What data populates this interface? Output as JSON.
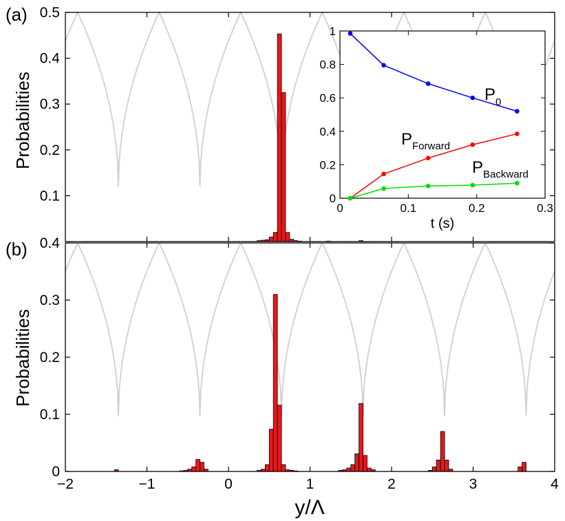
{
  "chart_data": [
    {
      "type": "bar",
      "panel_label": "(a)",
      "title": "",
      "xlabel": "",
      "ylabel": "Probabilities",
      "xlim": [
        -2,
        4
      ],
      "ylim": [
        0,
        0.5
      ],
      "yticks": [
        0.1,
        0.2,
        0.3,
        0.4,
        0.5
      ],
      "ytick_labels": [
        "0.1",
        "0.2",
        "0.3",
        "0.4",
        "0.5"
      ],
      "bar_color": "#e41a1c",
      "bar_edge_color": "#000000",
      "bar_width": 0.05,
      "background_curve_color": "#d3d3d3",
      "background_potential": {
        "minima": [
          -1.35,
          -0.35,
          0.65,
          1.65,
          2.65,
          3.65
        ],
        "max": 0.5,
        "min": 0.12
      },
      "bars": {
        "x": [
          0.375,
          0.425,
          0.475,
          0.525,
          0.575,
          0.625,
          0.675,
          0.725,
          0.775,
          0.825,
          0.875,
          1.225,
          1.625
        ],
        "y": [
          0.002,
          0.003,
          0.004,
          0.01,
          0.02,
          0.453,
          0.325,
          0.02,
          0.005,
          0.002,
          0.001,
          0.001,
          0.002
        ]
      }
    },
    {
      "type": "line",
      "role": "inset",
      "xlabel": "t (s)",
      "ylabel": "",
      "xlim": [
        0,
        0.3
      ],
      "ylim": [
        0,
        1
      ],
      "xticks": [
        0,
        0.1,
        0.2,
        0.3
      ],
      "xtick_labels": [
        "0",
        "0.1",
        "0.2",
        "0.3"
      ],
      "yticks": [
        0,
        0.2,
        0.4,
        0.6,
        0.8,
        1
      ],
      "ytick_labels": [
        "0",
        "0.2",
        "0.4",
        "0.6",
        "0.8",
        "1"
      ],
      "series": [
        {
          "name": "P",
          "subscript": "0",
          "color": "#0000ff",
          "x": [
            0.015,
            0.064,
            0.129,
            0.194,
            0.259
          ],
          "y": [
            0.985,
            0.795,
            0.685,
            0.6,
            0.52
          ]
        },
        {
          "name": "P",
          "subscript": "Forward",
          "color": "#ff0000",
          "x": [
            0.015,
            0.064,
            0.129,
            0.194,
            0.259
          ],
          "y": [
            0.0,
            0.145,
            0.24,
            0.32,
            0.385
          ]
        },
        {
          "name": "P",
          "subscript": "Backward",
          "color": "#00dd00",
          "x": [
            0.015,
            0.064,
            0.129,
            0.194,
            0.259
          ],
          "y": [
            0.0,
            0.058,
            0.073,
            0.078,
            0.09
          ]
        }
      ]
    },
    {
      "type": "bar",
      "panel_label": "(b)",
      "title": "",
      "xlabel": "y/Λ",
      "ylabel": "Probabilities",
      "xlim": [
        -2,
        4
      ],
      "ylim": [
        0,
        0.4
      ],
      "xticks": [
        -2,
        -1,
        0,
        1,
        2,
        3,
        4
      ],
      "xtick_labels": [
        "−2",
        "−1",
        "0",
        "1",
        "2",
        "3",
        "4"
      ],
      "yticks": [
        0,
        0.1,
        0.2,
        0.3,
        0.4
      ],
      "ytick_labels": [
        "0",
        "0.1",
        "0.2",
        "0.3",
        "0.4"
      ],
      "bar_color": "#e41a1c",
      "bar_edge_color": "#000000",
      "bar_width": 0.05,
      "background_curve_color": "#d3d3d3",
      "background_potential": {
        "minima": [
          -1.35,
          -0.35,
          0.65,
          1.65,
          2.65,
          3.65
        ],
        "max": 0.4,
        "min": 0.097
      },
      "bars": {
        "x": [
          -1.375,
          -0.575,
          -0.525,
          -0.475,
          -0.425,
          -0.375,
          -0.325,
          -0.275,
          0.375,
          0.425,
          0.475,
          0.525,
          0.575,
          0.625,
          0.675,
          0.725,
          0.775,
          0.825,
          1.375,
          1.425,
          1.475,
          1.525,
          1.575,
          1.625,
          1.675,
          1.725,
          1.775,
          2.475,
          2.525,
          2.575,
          2.625,
          2.675,
          2.725,
          3.575,
          3.625
        ],
        "y": [
          0.003,
          0.001,
          0.002,
          0.004,
          0.008,
          0.021,
          0.016,
          0.004,
          0.002,
          0.004,
          0.012,
          0.074,
          0.31,
          0.116,
          0.012,
          0.003,
          0.002,
          0.001,
          0.002,
          0.003,
          0.006,
          0.012,
          0.031,
          0.119,
          0.028,
          0.006,
          0.003,
          0.002,
          0.008,
          0.02,
          0.07,
          0.02,
          0.004,
          0.008,
          0.016
        ]
      }
    }
  ]
}
